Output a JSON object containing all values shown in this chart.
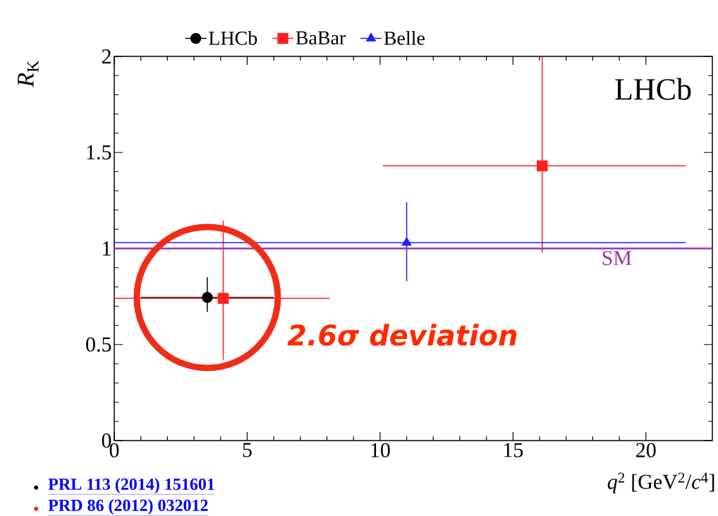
{
  "chart_data": {
    "type": "scatter",
    "xlabel": "*q*$^{2}$ [GeV$^{2}$/*c*$^{4}$]",
    "ylabel": "*R*$_{K}$",
    "xlim": [
      0,
      22.5
    ],
    "ylim": [
      0,
      2
    ],
    "xticks": [
      0,
      5,
      10,
      15,
      20
    ],
    "yticks": [
      0,
      0.5,
      1,
      1.5,
      2
    ],
    "legend": "top",
    "grid": false,
    "series": [
      {
        "name": "LHCb",
        "color": "#000000",
        "marker": "circle",
        "x": [
          3.5
        ],
        "values": [
          0.745
        ],
        "errors": [
          [
            0.67,
            0.85
          ]
        ],
        "xerrors": [
          [
            1,
            6
          ]
        ]
      },
      {
        "name": "BaBar",
        "color": "#ff2020",
        "marker": "square",
        "x": [
          4.1,
          16.1
        ],
        "values": [
          0.74,
          1.43
        ],
        "errors": [
          [
            0.42,
            1.145
          ],
          [
            0.98,
            2
          ]
        ],
        "xerrors": [
          [
            0,
            8.1
          ],
          [
            10.1,
            21.5
          ]
        ]
      },
      {
        "name": "Belle",
        "color": "#2020ff",
        "marker": "triangle",
        "x": [
          11
        ],
        "values": [
          1.03
        ],
        "errors": [
          [
            0.83,
            1.24
          ]
        ],
        "xerrors": [
          [
            0,
            21.5
          ]
        ]
      }
    ],
    "ref_lines": [
      {
        "axis": "y",
        "value": 1,
        "label": "SM",
        "color": "#9933aa"
      }
    ],
    "annotations": [
      "LHCb",
      "2.6σ deviation",
      "PRL 113 (2014) 151601",
      "PRD 86 (2012) 032012"
    ]
  }
}
